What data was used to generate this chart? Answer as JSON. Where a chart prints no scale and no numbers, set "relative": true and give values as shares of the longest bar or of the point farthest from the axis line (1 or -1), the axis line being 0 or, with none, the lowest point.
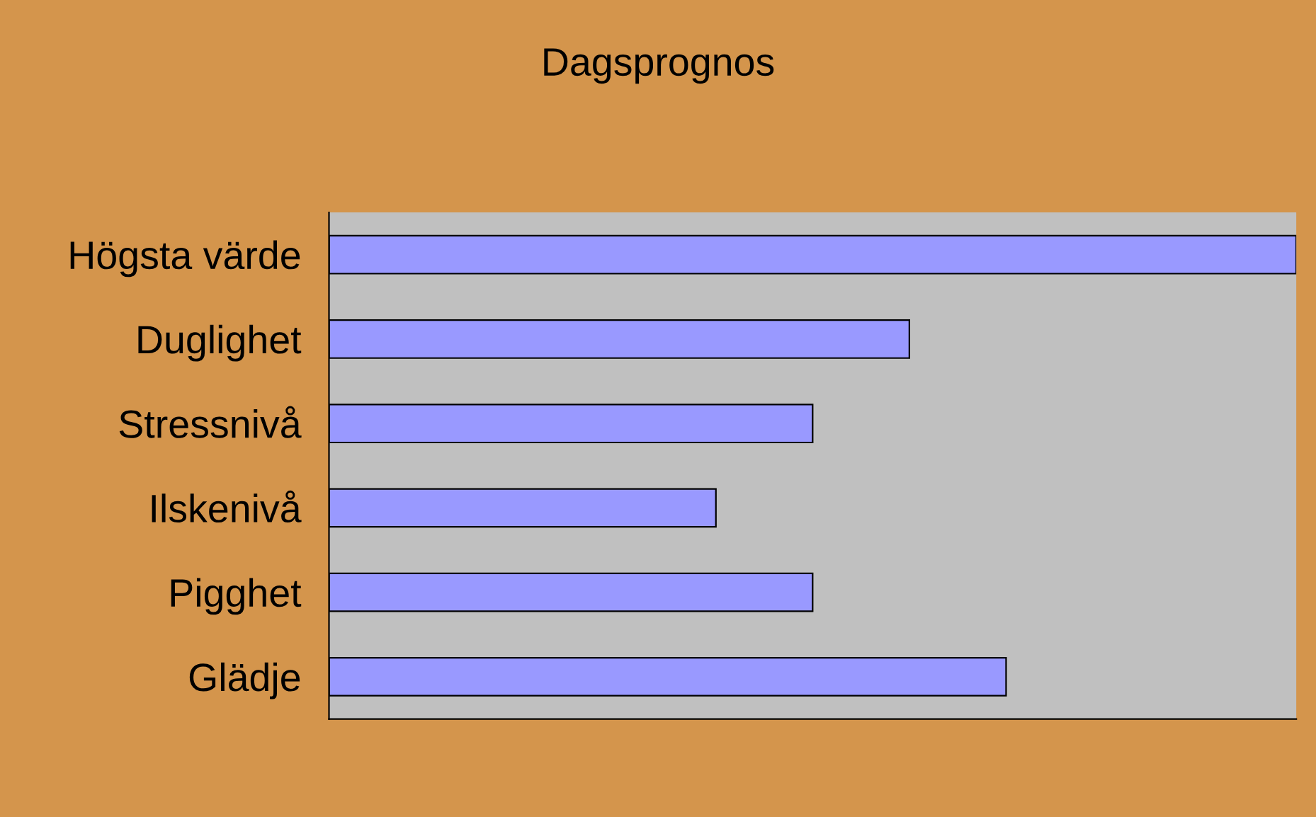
{
  "chart_data": {
    "type": "bar",
    "title": "Dagsprognos",
    "orientation": "horizontal",
    "relative": true,
    "tick_labels": "y",
    "categories": [
      "Högsta värde",
      "Duglighet",
      "Stressnivå",
      "Ilskenivå",
      "Pigghet",
      "Glädje"
    ],
    "values": [
      1,
      0.6,
      0.5,
      0.4,
      0.5,
      0.7
    ],
    "color": "#9999ff",
    "grid": false,
    "legend": false
  }
}
